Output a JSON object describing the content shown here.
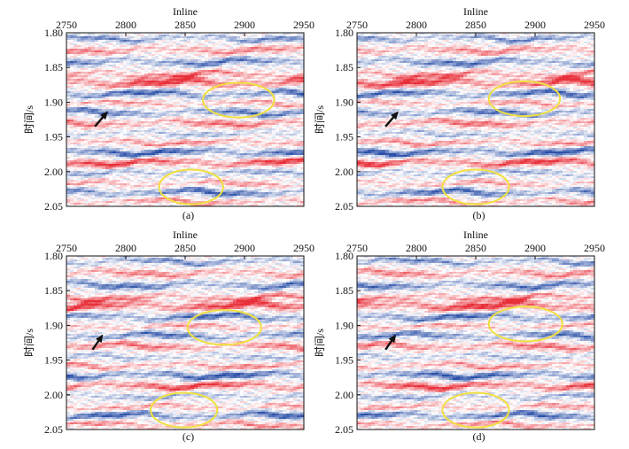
{
  "figure": {
    "panels": [
      {
        "id": "a",
        "caption": "(a)"
      },
      {
        "id": "b",
        "caption": "(b)"
      },
      {
        "id": "c",
        "caption": "(c)"
      },
      {
        "id": "d",
        "caption": "(d)"
      }
    ]
  },
  "chart_data": [
    {
      "type": "heatmap",
      "panel": "(a)",
      "xlabel": "Inline",
      "ylabel": "时间/s",
      "xlim": [
        2750,
        2950
      ],
      "ylim": [
        1.8,
        2.05
      ],
      "x_ticks": [
        "2750",
        "2800",
        "2850",
        "2900",
        "2950"
      ],
      "y_ticks": [
        "1.80",
        "1.85",
        "1.90",
        "1.95",
        "2.00",
        "2.05"
      ],
      "colors": {
        "positive": "#e8303a",
        "negative": "#2a4fa8",
        "zero": "#ffffff",
        "annotation": "#f0e040",
        "arrow": "#111111"
      },
      "ellipses": [
        {
          "cx": 2895,
          "cy": 1.897,
          "rx": 30,
          "ry": 0.025
        },
        {
          "cx": 2855,
          "cy": 2.022,
          "rx": 27,
          "ry": 0.025
        }
      ],
      "arrow": {
        "x1": 2774,
        "y1": 1.935,
        "x2": 2784,
        "y2": 1.915
      }
    },
    {
      "type": "heatmap",
      "panel": "(b)",
      "xlabel": "Inline",
      "ylabel": "时间/s",
      "xlim": [
        2750,
        2950
      ],
      "ylim": [
        1.8,
        2.05
      ],
      "x_ticks": [
        "2750",
        "2800",
        "2850",
        "2900",
        "2950"
      ],
      "y_ticks": [
        "1.80",
        "1.85",
        "1.90",
        "1.95",
        "2.00",
        "2.05"
      ],
      "colors": {
        "positive": "#e8303a",
        "negative": "#2a4fa8",
        "zero": "#ffffff",
        "annotation": "#f0e040",
        "arrow": "#111111"
      },
      "ellipses": [
        {
          "cx": 2891,
          "cy": 1.895,
          "rx": 30,
          "ry": 0.025
        },
        {
          "cx": 2850,
          "cy": 2.022,
          "rx": 28,
          "ry": 0.025
        }
      ],
      "arrow": {
        "x1": 2774,
        "y1": 1.935,
        "x2": 2784,
        "y2": 1.915
      }
    },
    {
      "type": "heatmap",
      "panel": "(c)",
      "xlabel": "Inline",
      "ylabel": "时间/s",
      "xlim": [
        2750,
        2950
      ],
      "ylim": [
        1.8,
        2.05
      ],
      "x_ticks": [
        "2750",
        "2800",
        "2850",
        "2900",
        "2950"
      ],
      "y_ticks": [
        "1.80",
        "1.85",
        "1.90",
        "1.95",
        "2.00",
        "2.05"
      ],
      "colors": {
        "positive": "#e8303a",
        "negative": "#2a4fa8",
        "zero": "#ffffff",
        "annotation": "#f0e040",
        "arrow": "#111111"
      },
      "ellipses": [
        {
          "cx": 2883,
          "cy": 1.903,
          "rx": 31,
          "ry": 0.025
        },
        {
          "cx": 2849,
          "cy": 2.022,
          "rx": 28,
          "ry": 0.025
        }
      ],
      "arrow": {
        "x1": 2772,
        "y1": 1.935,
        "x2": 2780,
        "y2": 1.915
      }
    },
    {
      "type": "heatmap",
      "panel": "(d)",
      "xlabel": "Inline",
      "ylabel": "时间/s",
      "xlim": [
        2750,
        2950
      ],
      "ylim": [
        1.8,
        2.05
      ],
      "x_ticks": [
        "2750",
        "2800",
        "2850",
        "2900",
        "2950"
      ],
      "y_ticks": [
        "1.80",
        "1.85",
        "1.90",
        "1.95",
        "2.00",
        "2.05"
      ],
      "colors": {
        "positive": "#e8303a",
        "negative": "#2a4fa8",
        "zero": "#ffffff",
        "annotation": "#f0e040",
        "arrow": "#111111"
      },
      "ellipses": [
        {
          "cx": 2892,
          "cy": 1.898,
          "rx": 31,
          "ry": 0.025
        },
        {
          "cx": 2850,
          "cy": 2.022,
          "rx": 28,
          "ry": 0.025
        }
      ],
      "arrow": {
        "x1": 2774,
        "y1": 1.935,
        "x2": 2782,
        "y2": 1.915
      }
    }
  ]
}
